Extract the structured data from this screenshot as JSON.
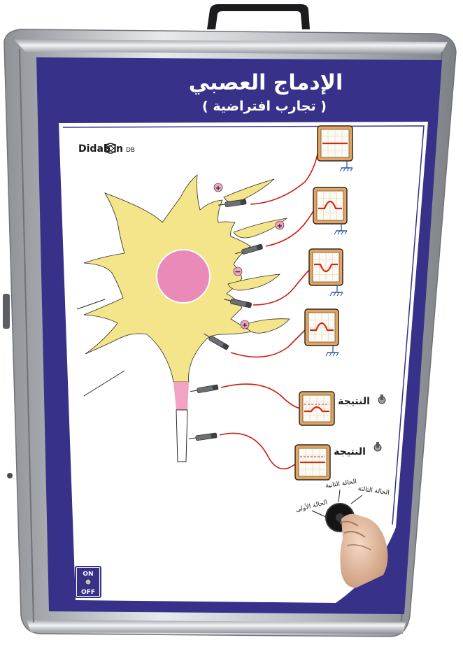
{
  "board": {
    "title": "الإدماج العصبي",
    "subtitle": "( تجارب افتراضية )",
    "brand": "Didab",
    "brand_suffix": "n",
    "brand_tag": "DB"
  },
  "synapse_signs": [
    "+",
    "+",
    "−",
    "+"
  ],
  "result_labels": [
    "النتيجة",
    "النتيجة"
  ],
  "selector_labels": [
    "الحالة الأولى",
    "الحالة الثانية",
    "الحالة الثالثة"
  ],
  "power_switch": {
    "on": "ON",
    "off": "OFF"
  },
  "colors": {
    "frame_blue": "#37318a",
    "neuron_yellow": "#f4e58a",
    "nucleus_pink": "#e98ab8",
    "axon_hillock_pink": "#f3a2c4",
    "wire_red": "#cc1d12",
    "trace_red": "#d22a18",
    "scope_orange": "#e9a45a"
  }
}
